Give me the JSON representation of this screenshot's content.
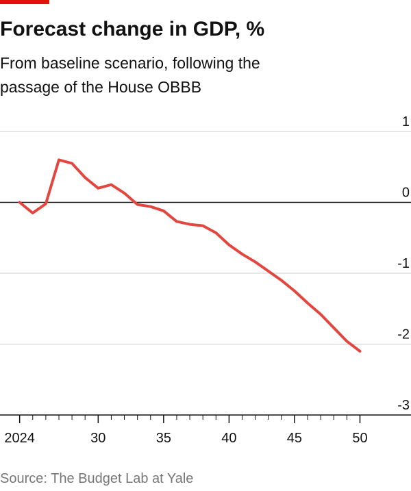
{
  "chart_data": {
    "type": "line",
    "title": "Forecast change in GDP, %",
    "subtitle": [
      "From baseline scenario, following the",
      "passage of the House OBBB"
    ],
    "source": "Source: The Budget Lab at Yale",
    "x": [
      2024,
      2025,
      2026,
      2027,
      2028,
      2029,
      2030,
      2031,
      2032,
      2033,
      2034,
      2035,
      2036,
      2037,
      2038,
      2039,
      2040,
      2041,
      2042,
      2043,
      2044,
      2045,
      2046,
      2047,
      2048,
      2049,
      2050
    ],
    "series": [
      {
        "color": "#e3463f",
        "values": [
          0,
          -0.15,
          -0.02,
          0.6,
          0.55,
          0.35,
          0.2,
          0.25,
          0.13,
          -0.03,
          -0.06,
          -0.12,
          -0.27,
          -0.31,
          -0.33,
          -0.43,
          -0.6,
          -0.73,
          -0.84,
          -0.97,
          -1.1,
          -1.25,
          -1.42,
          -1.58,
          -1.77,
          -1.96,
          -2.1
        ]
      }
    ],
    "xlim": [
      2022.5,
      2053.9
    ],
    "xticks": [
      {
        "value": 2024,
        "label": "2024"
      },
      {
        "value": 2030,
        "label": "30"
      },
      {
        "value": 2035,
        "label": "35"
      },
      {
        "value": 2040,
        "label": "40"
      },
      {
        "value": 2045,
        "label": "45"
      },
      {
        "value": 2050,
        "label": "50"
      }
    ],
    "xminor_ticks": [
      2025,
      2026,
      2027,
      2028,
      2029,
      2031,
      2032,
      2033,
      2034,
      2036,
      2037,
      2038,
      2039,
      2041,
      2042,
      2043,
      2044,
      2046,
      2047,
      2048,
      2049
    ],
    "ylim": [
      -3,
      1
    ],
    "yticks": [
      1,
      0,
      -1,
      -2,
      -3
    ],
    "grid": true
  }
}
